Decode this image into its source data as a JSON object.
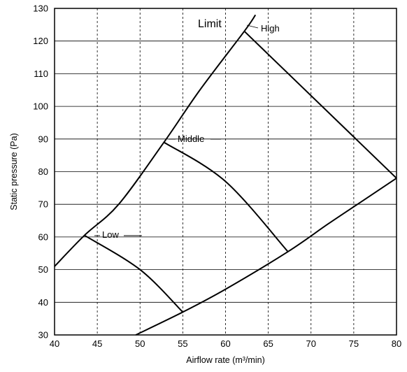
{
  "chart_data": {
    "type": "line",
    "title": "",
    "xlabel": "Airflow rate (m³/min)",
    "ylabel": "Static pressure (Pa)",
    "xlim": [
      40,
      80
    ],
    "ylim": [
      30,
      130
    ],
    "x_ticks": [
      40,
      45,
      50,
      55,
      60,
      65,
      70,
      75,
      80
    ],
    "y_ticks": [
      30,
      40,
      50,
      60,
      70,
      80,
      90,
      100,
      110,
      120,
      130
    ],
    "grid": {
      "vertical": "dashed",
      "horizontal": "solid"
    },
    "series": [
      {
        "label": "High",
        "points": [
          [
            62.2,
            123
          ],
          [
            80,
            78
          ]
        ]
      },
      {
        "label": "Middle",
        "points": [
          [
            52.8,
            89
          ],
          [
            60,
            77
          ],
          [
            67.3,
            55.5
          ]
        ]
      },
      {
        "label": "Low",
        "points": [
          [
            43.5,
            60.5
          ],
          [
            50,
            50
          ],
          [
            55,
            37
          ]
        ]
      }
    ],
    "boundaries": {
      "upper": [
        [
          40,
          51
        ],
        [
          43.5,
          60.5
        ],
        [
          47.5,
          70
        ],
        [
          52.8,
          89
        ],
        [
          57,
          105
        ],
        [
          62.2,
          123
        ],
        [
          63.5,
          128
        ]
      ],
      "lower": [
        [
          49.5,
          30
        ],
        [
          55,
          37
        ],
        [
          60,
          44
        ],
        [
          67.3,
          55.5
        ],
        [
          72,
          64
        ],
        [
          76,
          71
        ],
        [
          80,
          78
        ]
      ]
    },
    "annotations": [
      {
        "text": "Limit",
        "x": 59.5,
        "y": 124.5
      }
    ]
  }
}
